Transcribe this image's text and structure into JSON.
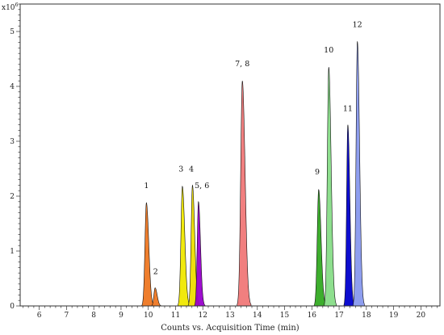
{
  "chart_data": {
    "type": "area",
    "title": "",
    "xlabel": "Counts vs. Acquisition Time (min)",
    "ylabel": "",
    "y_scale_label": "x10",
    "y_scale_exponent": "6",
    "xlim": [
      5.3,
      20.7
    ],
    "ylim": [
      0,
      5.5
    ],
    "x_ticks": [
      6,
      7,
      8,
      9,
      10,
      11,
      12,
      13,
      14,
      15,
      16,
      17,
      18,
      19,
      20
    ],
    "y_ticks": [
      0,
      1,
      2,
      3,
      4,
      5
    ],
    "grid": false,
    "series": [
      {
        "label": "1",
        "peak_x": 9.93,
        "peak_y": 1.88,
        "width": 0.07,
        "color": "#ee7722"
      },
      {
        "label": "2",
        "peak_x": 10.25,
        "peak_y": 0.33,
        "width": 0.06,
        "color": "#ee7722"
      },
      {
        "label": "3",
        "peak_x": 11.25,
        "peak_y": 2.18,
        "width": 0.07,
        "color": "#f0e800"
      },
      {
        "label": "4",
        "peak_x": 11.62,
        "peak_y": 2.2,
        "width": 0.065,
        "color": "#eedd00"
      },
      {
        "label": "5, 6",
        "peak_x": 11.84,
        "peak_y": 1.9,
        "width": 0.06,
        "color": "#9900cc"
      },
      {
        "label": "7, 8",
        "peak_x": 13.45,
        "peak_y": 4.1,
        "width": 0.08,
        "color": "#f07878"
      },
      {
        "label": "9",
        "peak_x": 16.25,
        "peak_y": 2.12,
        "width": 0.07,
        "color": "#33aa22"
      },
      {
        "label": "10",
        "peak_x": 16.62,
        "peak_y": 4.35,
        "width": 0.07,
        "color": "#88dd88"
      },
      {
        "label": "11",
        "peak_x": 17.32,
        "peak_y": 3.3,
        "width": 0.06,
        "color": "#0000cc"
      },
      {
        "label": "12",
        "peak_x": 17.67,
        "peak_y": 4.82,
        "width": 0.065,
        "color": "#8899ee"
      }
    ],
    "peak_labels": [
      {
        "text": "1",
        "x": 9.93,
        "y": 2.15
      },
      {
        "text": "2",
        "x": 10.27,
        "y": 0.58
      },
      {
        "text": "3",
        "x": 11.2,
        "y": 2.45
      },
      {
        "text": "4",
        "x": 11.58,
        "y": 2.45
      },
      {
        "text": "5, 6",
        "x": 11.97,
        "y": 2.15
      },
      {
        "text": "7, 8",
        "x": 13.45,
        "y": 4.37
      },
      {
        "text": "9",
        "x": 16.2,
        "y": 2.4
      },
      {
        "text": "10",
        "x": 16.62,
        "y": 4.62
      },
      {
        "text": "11",
        "x": 17.32,
        "y": 3.55
      },
      {
        "text": "12",
        "x": 17.67,
        "y": 5.08
      }
    ]
  }
}
